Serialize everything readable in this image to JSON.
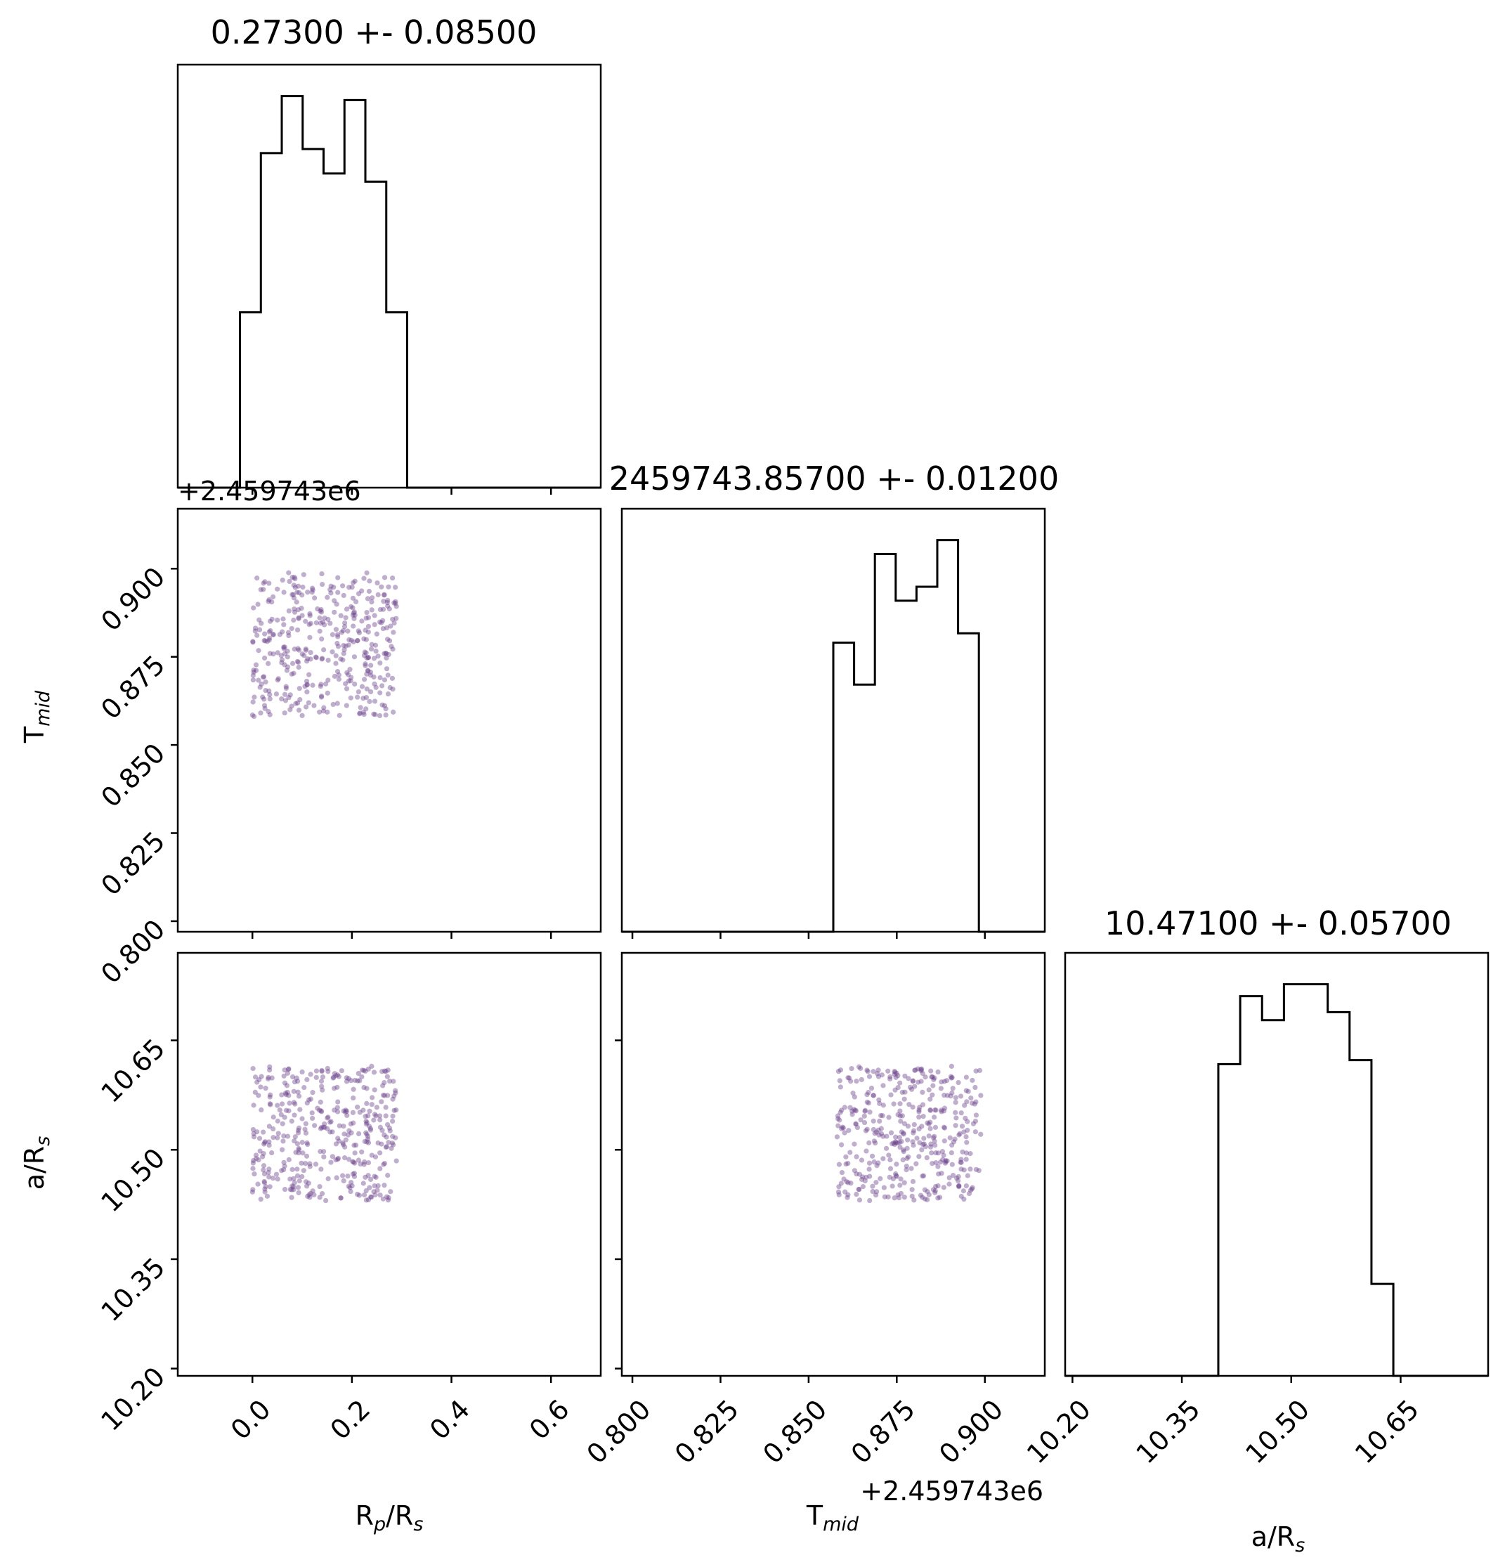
{
  "chart_data": {
    "type": "corner",
    "parameters": [
      {
        "key": "rp",
        "label_main": "R",
        "label_sub": "p",
        "label_mid": "/R",
        "label_sub2": "s",
        "lim": [
          -0.15,
          0.7
        ],
        "ticks": [
          0.0,
          0.2,
          0.4,
          0.6
        ],
        "tick_labels": [
          "0.0",
          "0.2",
          "0.4",
          "0.6"
        ]
      },
      {
        "key": "tmid",
        "label_main": "T",
        "label_sub": "mid",
        "label_mid": "",
        "label_sub2": "",
        "lim": [
          0.797,
          0.917
        ],
        "ticks": [
          0.8,
          0.825,
          0.85,
          0.875,
          0.9
        ],
        "tick_labels": [
          "0.800",
          "0.825",
          "0.850",
          "0.875",
          "0.900"
        ],
        "offset_text": "+2.459743e6"
      },
      {
        "key": "ars",
        "label_main": "a/R",
        "label_sub": "s",
        "label_mid": "",
        "label_sub2": "",
        "lim": [
          10.19,
          10.77
        ],
        "ticks": [
          10.2,
          10.35,
          10.5,
          10.65
        ],
        "tick_labels": [
          "10.20",
          "10.35",
          "10.50",
          "10.65"
        ]
      }
    ],
    "titles": [
      "0.27300 +- 0.08500",
      "2459743.85700 +- 0.01200",
      "10.47100 +- 0.05700"
    ],
    "histograms": [
      {
        "edges": [
          -0.025,
          0.017,
          0.059,
          0.101,
          0.143,
          0.185,
          0.227,
          0.269,
          0.311
        ],
        "counts": [
          43,
          82,
          96,
          83,
          77,
          95,
          75,
          43
        ]
      },
      {
        "edges": [
          0.857,
          0.8629,
          0.8688,
          0.8747,
          0.8806,
          0.8865,
          0.8924,
          0.8983
        ],
        "counts": [
          62,
          53,
          81,
          71,
          74,
          84,
          64
        ]
      },
      {
        "edges": [
          10.4,
          10.43,
          10.46,
          10.49,
          10.52,
          10.55,
          10.58,
          10.61,
          10.64
        ],
        "counts": [
          78,
          95,
          89,
          98,
          98,
          91,
          79,
          23
        ]
      }
    ],
    "scatter": {
      "n_points": 400,
      "point_color": "#6a3d8a",
      "rp_range": [
        0.0,
        0.29
      ],
      "tmid_range": [
        0.858,
        0.899
      ],
      "ars_range": [
        10.43,
        10.615
      ]
    },
    "grid": false
  }
}
